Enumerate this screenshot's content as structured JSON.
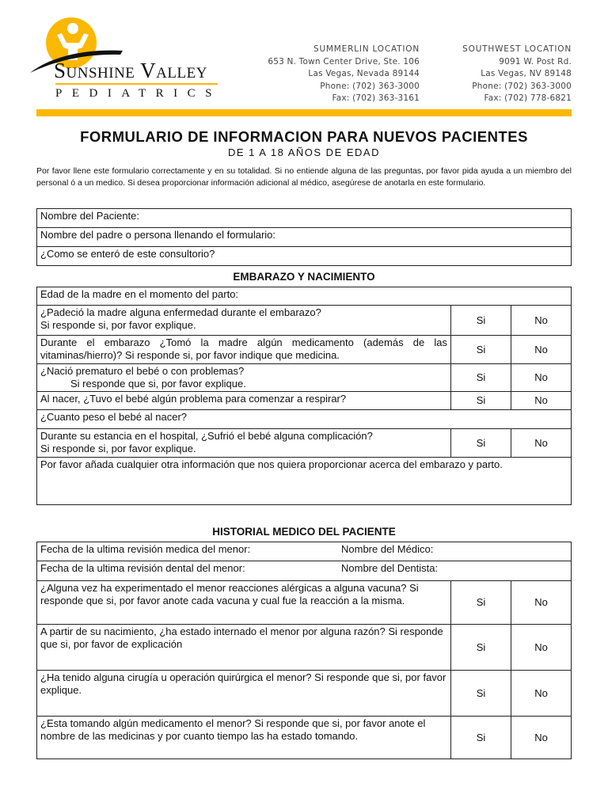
{
  "logo": {
    "name": "Sunshine Valley",
    "sub": "Pediatrics",
    "colors": {
      "sun": "#fbb800",
      "swoosh": "#111111"
    }
  },
  "locations": [
    {
      "title": "SUMMERLIN LOCATION",
      "lines": [
        "653 N. Town Center Drive, Ste. 106",
        "Las Vegas, Nevada 89144",
        "Phone:  (702) 363-3000",
        "Fax: (702) 363-3161"
      ]
    },
    {
      "title": "SOUTHWEST LOCATION",
      "lines": [
        "9091 W. Post Rd.",
        "Las Vegas, NV 89148",
        "Phone: (702) 363-3000",
        "Fax: (702) 778-6821"
      ]
    }
  ],
  "accent": "#fbb800",
  "title": "FORMULARIO DE INFORMACION PARA NUEVOS PACIENTES",
  "subtitle": "DE 1 A 18 AÑOS DE EDAD",
  "intro": "Por favor llene este formulario correctamente y en su totalidad. Si no entiende alguna de las preguntas, por favor pida ayuda a un miembro del personal ó a un medico. Si  desea proporcionar información adicional al médico, asegúrese de anotarla en este formulario.",
  "patient": [
    "Nombre del Paciente:",
    "Nombre del padre o persona llenando el formulario:",
    "¿Como se enteró de este consultorio?"
  ],
  "yes": "Si",
  "no": "No",
  "pregnancy": {
    "heading": "EMBARAZO Y NACIMIENTO",
    "mother_age": "Edad de la madre en el momento del parto:",
    "q": [
      [
        "¿Padeció la madre alguna enfermedad durante el embarazo?",
        "Si responde si, por favor explique."
      ],
      [
        "Durante el embarazo ¿Tomó la madre algún medicamento (además de las vitaminas/hierro)? Si responde si, por favor indique que medicina."
      ],
      [
        "¿Nació prematuro el bebé o con problemas?",
        "Si responde que si, por favor explique."
      ],
      [
        "Al nacer, ¿Tuvo el bebé algún problema para comenzar a respirar?"
      ]
    ],
    "weight": "¿Cuanto peso el bebé al nacer?",
    "hospital": [
      "Durante su estancia en el hospital, ¿Sufrió el bebé alguna complicación?",
      "Si responde si, por favor explique."
    ],
    "other": "Por favor añada cualquier otra información que nos quiera proporcionar acerca del embarazo y parto."
  },
  "history": {
    "heading": "HISTORIAL MEDICO DEL PACIENTE",
    "medical_date": "Fecha de la ultima revisión medica del menor:",
    "doctor": "Nombre del Médico:",
    "dental_date": "Fecha de la ultima revisión dental del menor:",
    "dentist": "Nombre del Dentista:",
    "q": [
      "¿Alguna vez ha experimentado el menor reacciones alérgicas a alguna vacuna? Si responde que si, por favor anote cada vacuna y cual fue la reacción a la misma.",
      "A partir de su nacimiento, ¿ha estado internado el menor por alguna razón? Si responde que si, por favor de explicación",
      "¿Ha tenido alguna cirugía u operación quirúrgica el menor? Si responde que si, por favor explique.",
      "¿Esta tomando algún medicamento el menor? Si responde que si, por favor anote el nombre de las medicinas y por cuanto tiempo las ha estado tomando."
    ]
  }
}
